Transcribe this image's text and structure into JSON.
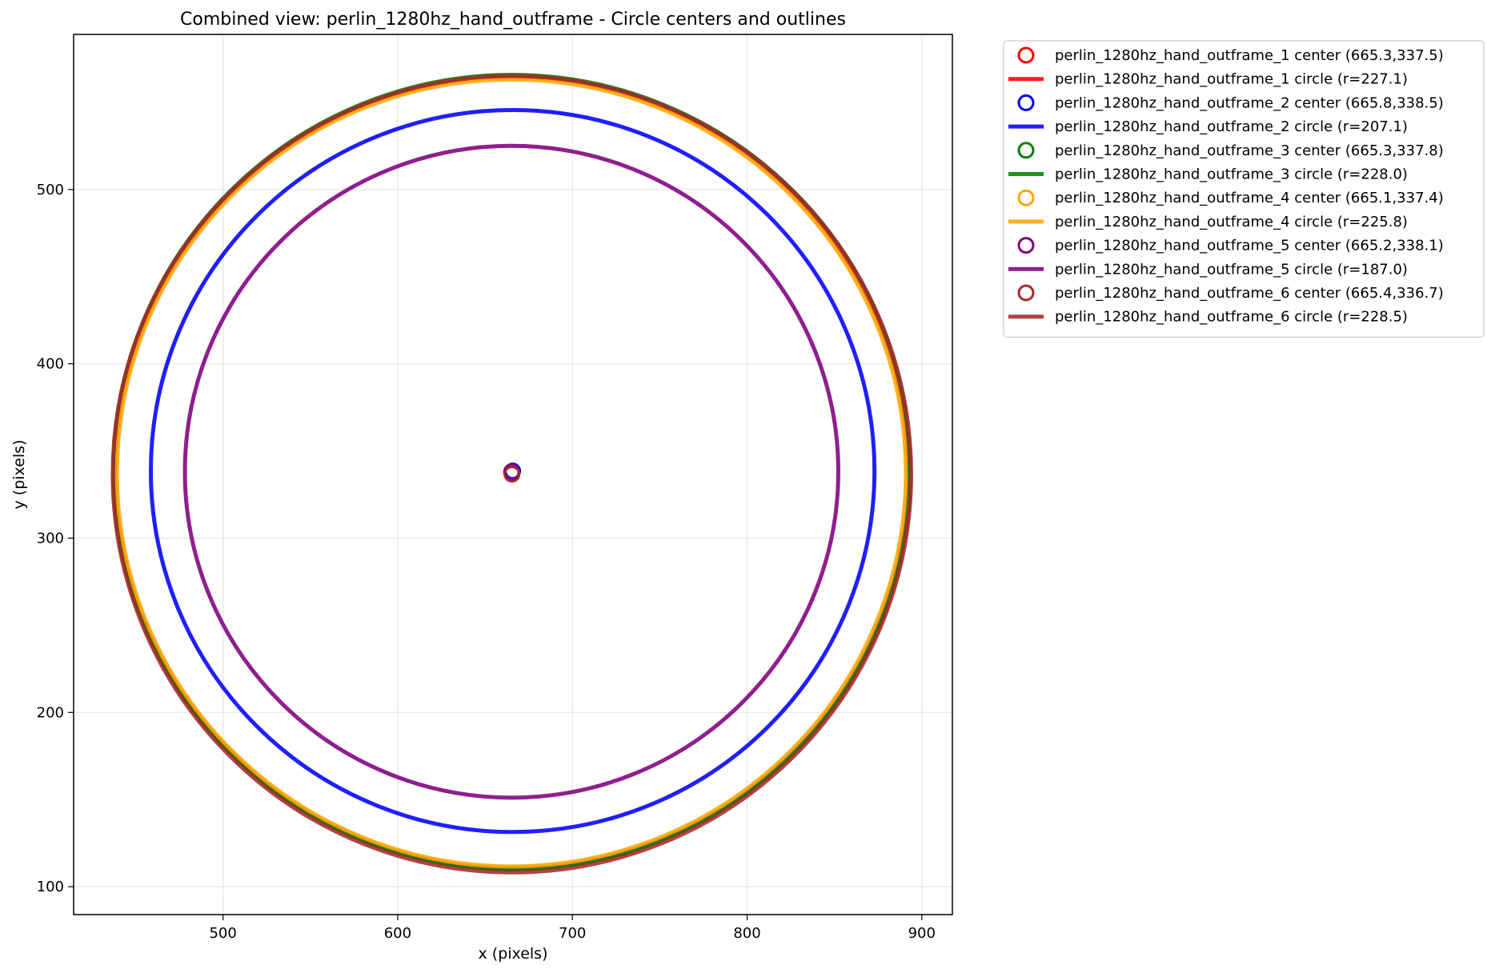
{
  "chart_data": {
    "type": "scatter",
    "title": "Combined view: perlin_1280hz_hand_outframe - Circle centers and outlines",
    "xlabel": "x (pixels)",
    "ylabel": "y (pixels)",
    "xlim": [
      414.5,
      917.5
    ],
    "ylim": [
      84,
      589
    ],
    "xticks": [
      500,
      600,
      700,
      800,
      900
    ],
    "yticks": [
      100,
      200,
      300,
      400,
      500
    ],
    "grid": true,
    "legend_placement": "outside-top-right",
    "series": [
      {
        "center_label": "perlin_1280hz_hand_outframe_1 center (665.3,337.5)",
        "circle_label": "perlin_1280hz_hand_outframe_1 circle (r=227.1)",
        "cx": 665.3,
        "cy": 337.5,
        "r": 227.1,
        "color": "#ff0000"
      },
      {
        "center_label": "perlin_1280hz_hand_outframe_2 center (665.8,338.5)",
        "circle_label": "perlin_1280hz_hand_outframe_2 circle (r=207.1)",
        "cx": 665.8,
        "cy": 338.5,
        "r": 207.1,
        "color": "#0000ff"
      },
      {
        "center_label": "perlin_1280hz_hand_outframe_3 center (665.3,337.8)",
        "circle_label": "perlin_1280hz_hand_outframe_3 circle (r=228.0)",
        "cx": 665.3,
        "cy": 337.8,
        "r": 228.0,
        "color": "#008000"
      },
      {
        "center_label": "perlin_1280hz_hand_outframe_4 center (665.1,337.4)",
        "circle_label": "perlin_1280hz_hand_outframe_4 circle (r=225.8)",
        "cx": 665.1,
        "cy": 337.4,
        "r": 225.8,
        "color": "#ffa500"
      },
      {
        "center_label": "perlin_1280hz_hand_outframe_5 center (665.2,338.1)",
        "circle_label": "perlin_1280hz_hand_outframe_5 circle (r=187.0)",
        "cx": 665.2,
        "cy": 338.1,
        "r": 187.0,
        "color": "#800080"
      },
      {
        "center_label": "perlin_1280hz_hand_outframe_6 center (665.4,336.7)",
        "circle_label": "perlin_1280hz_hand_outframe_6 circle (r=228.5)",
        "cx": 665.4,
        "cy": 336.7,
        "r": 228.5,
        "color": "#a52a2a"
      }
    ]
  }
}
